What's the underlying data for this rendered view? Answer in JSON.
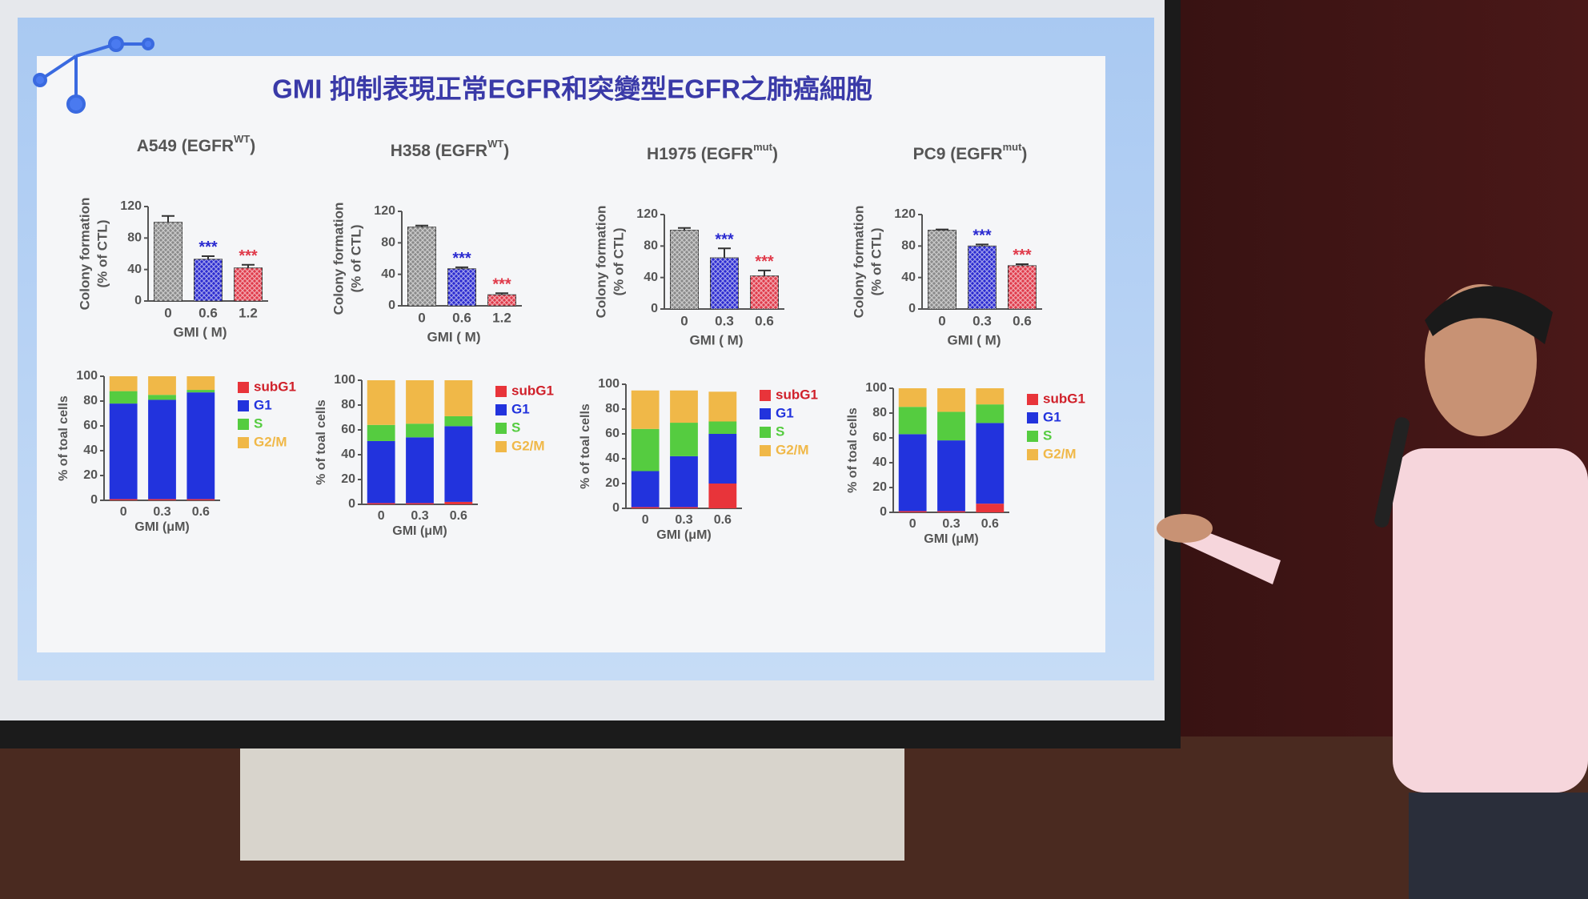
{
  "slide_title": "GMI 抑制表現正常EGFR和突變型EGFR之肺癌細胞",
  "chart_data": [
    {
      "type": "bar",
      "title": [
        "A549 (EGFR",
        "WT",
        ")"
      ],
      "ylabel": [
        "Colony formation",
        "(% of CTL)"
      ],
      "xlabel": "GMI (  M)",
      "categories": [
        "0",
        "0.6",
        "1.2"
      ],
      "values": [
        100,
        53,
        42
      ],
      "errors": [
        8,
        4,
        4
      ],
      "annotations": [
        null,
        "***",
        "***"
      ],
      "colors": [
        "#8a8a8a",
        "#2a2ad0",
        "#e03a4a"
      ],
      "ylim": [
        0,
        120
      ],
      "yticks": [
        0,
        40,
        80,
        120
      ]
    },
    {
      "type": "stacked_bar",
      "ylabel": "% of toal cells",
      "xlabel": "GMI (μM)",
      "categories": [
        "0",
        "0.3",
        "0.6"
      ],
      "ylim": [
        0,
        100
      ],
      "yticks": [
        0,
        20,
        40,
        60,
        80,
        100
      ],
      "series": [
        {
          "name": "subG1",
          "color": "#e8343a",
          "values": [
            1,
            1,
            1
          ]
        },
        {
          "name": "G1",
          "color": "#2233dd",
          "values": [
            77,
            80,
            86
          ]
        },
        {
          "name": "S",
          "color": "#55cc40",
          "values": [
            10,
            4,
            2
          ]
        },
        {
          "name": "G2/M",
          "color": "#f0b848",
          "values": [
            12,
            15,
            11
          ]
        }
      ]
    },
    {
      "type": "bar",
      "title": [
        "H358 (EGFR",
        "WT",
        ")"
      ],
      "ylabel": [
        "Colony formation",
        "(% of CTL)"
      ],
      "xlabel": "GMI (  M)",
      "categories": [
        "0",
        "0.6",
        "1.2"
      ],
      "values": [
        100,
        47,
        14
      ],
      "errors": [
        2,
        2,
        2
      ],
      "annotations": [
        null,
        "***",
        "***"
      ],
      "colors": [
        "#8a8a8a",
        "#2a2ad0",
        "#e03a4a"
      ],
      "ylim": [
        0,
        120
      ],
      "yticks": [
        0,
        40,
        80,
        120
      ]
    },
    {
      "type": "stacked_bar",
      "ylabel": "% of toal cells",
      "xlabel": "GMI (μM)",
      "categories": [
        "0",
        "0.3",
        "0.6"
      ],
      "ylim": [
        0,
        100
      ],
      "yticks": [
        0,
        20,
        40,
        60,
        80,
        100
      ],
      "series": [
        {
          "name": "subG1",
          "color": "#e8343a",
          "values": [
            1,
            1,
            2
          ]
        },
        {
          "name": "G1",
          "color": "#2233dd",
          "values": [
            50,
            53,
            61
          ]
        },
        {
          "name": "S",
          "color": "#55cc40",
          "values": [
            13,
            11,
            8
          ]
        },
        {
          "name": "G2/M",
          "color": "#f0b848",
          "values": [
            36,
            35,
            29
          ]
        }
      ]
    },
    {
      "type": "bar",
      "title": [
        "H1975 (EGFR",
        "mut",
        ")"
      ],
      "ylabel": [
        "Colony formation",
        "(% of CTL)"
      ],
      "xlabel": "GMI (  M)",
      "categories": [
        "0",
        "0.3",
        "0.6"
      ],
      "values": [
        100,
        65,
        42
      ],
      "errors": [
        3,
        12,
        7
      ],
      "annotations": [
        null,
        "***",
        "***"
      ],
      "colors": [
        "#8a8a8a",
        "#2a2ad0",
        "#e03a4a"
      ],
      "ylim": [
        0,
        120
      ],
      "yticks": [
        0,
        40,
        80,
        120
      ]
    },
    {
      "type": "stacked_bar",
      "ylabel": "% of toal cells",
      "xlabel": "GMI (μM)",
      "categories": [
        "0",
        "0.3",
        "0.6"
      ],
      "ylim": [
        0,
        100
      ],
      "yticks": [
        0,
        20,
        40,
        60,
        80,
        100
      ],
      "series": [
        {
          "name": "subG1",
          "color": "#e8343a",
          "values": [
            1,
            1,
            20
          ]
        },
        {
          "name": "G1",
          "color": "#2233dd",
          "values": [
            29,
            41,
            40
          ]
        },
        {
          "name": "S",
          "color": "#55cc40",
          "values": [
            34,
            27,
            10
          ]
        },
        {
          "name": "G2/M",
          "color": "#f0b848",
          "values": [
            31,
            26,
            24
          ]
        }
      ]
    },
    {
      "type": "bar",
      "title": [
        "PC9 (EGFR",
        "mut",
        ")"
      ],
      "ylabel": [
        "Colony formation",
        "(% of CTL)"
      ],
      "xlabel": "GMI (  M)",
      "categories": [
        "0",
        "0.3",
        "0.6"
      ],
      "values": [
        100,
        80,
        55
      ],
      "errors": [
        1,
        2,
        2
      ],
      "annotations": [
        null,
        "***",
        "***"
      ],
      "colors": [
        "#8a8a8a",
        "#2a2ad0",
        "#e03a4a"
      ],
      "ylim": [
        0,
        120
      ],
      "yticks": [
        0,
        40,
        80,
        120
      ]
    },
    {
      "type": "stacked_bar",
      "ylabel": "% of toal cells",
      "xlabel": "GMI (μM)",
      "categories": [
        "0",
        "0.3",
        "0.6"
      ],
      "ylim": [
        0,
        100
      ],
      "yticks": [
        0,
        20,
        40,
        60,
        80,
        100
      ],
      "series": [
        {
          "name": "subG1",
          "color": "#e8343a",
          "values": [
            1,
            1,
            7
          ]
        },
        {
          "name": "G1",
          "color": "#2233dd",
          "values": [
            62,
            57,
            65
          ]
        },
        {
          "name": "S",
          "color": "#55cc40",
          "values": [
            22,
            23,
            15
          ]
        },
        {
          "name": "G2/M",
          "color": "#f0b848",
          "values": [
            15,
            19,
            13
          ]
        }
      ]
    }
  ]
}
